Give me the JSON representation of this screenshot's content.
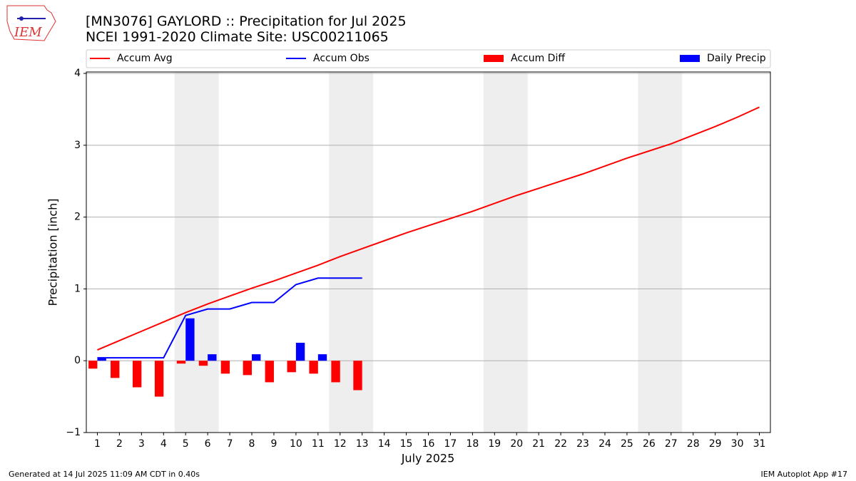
{
  "chart_data": {
    "type": "bar",
    "title": "[MN3076] GAYLORD :: Precipitation for Jul 2025",
    "subtitle": "NCEI 1991-2020 Climate Site: USC00211065",
    "x_label": "July 2025",
    "y_label": "Precipitation [inch]",
    "x": [
      1,
      2,
      3,
      4,
      5,
      6,
      7,
      8,
      9,
      10,
      11,
      12,
      13,
      14,
      15,
      16,
      17,
      18,
      19,
      20,
      21,
      22,
      23,
      24,
      25,
      26,
      27,
      28,
      29,
      30,
      31
    ],
    "xlim": [
      0.5,
      31.5
    ],
    "xticks": [
      1,
      2,
      3,
      4,
      5,
      6,
      7,
      8,
      9,
      10,
      11,
      12,
      13,
      14,
      15,
      16,
      17,
      18,
      19,
      20,
      21,
      22,
      23,
      24,
      25,
      26,
      27,
      28,
      29,
      30,
      31
    ],
    "ylim": [
      -1.0,
      4.02
    ],
    "yticks": [
      {
        "value": -1,
        "label": "−1"
      },
      0,
      1,
      2,
      3,
      4
    ],
    "grid": true,
    "weekend_spans": [
      [
        4.5,
        6.5
      ],
      [
        11.5,
        13.5
      ],
      [
        18.5,
        20.5
      ],
      [
        25.5,
        27.5
      ]
    ],
    "series": [
      {
        "name": "Accum Avg",
        "kind": "line",
        "color": "#ff0000",
        "values": [
          0.15,
          0.28,
          0.41,
          0.54,
          0.67,
          0.79,
          0.9,
          1.01,
          1.11,
          1.22,
          1.33,
          1.45,
          1.56,
          1.67,
          1.78,
          1.88,
          1.98,
          2.08,
          2.19,
          2.3,
          2.4,
          2.5,
          2.6,
          2.71,
          2.82,
          2.92,
          3.02,
          3.14,
          3.26,
          3.39,
          3.53
        ]
      },
      {
        "name": "Accum Obs",
        "kind": "line",
        "color": "#0000ff",
        "values": [
          0.04,
          0.04,
          0.04,
          0.04,
          0.63,
          0.72,
          0.72,
          0.81,
          0.81,
          1.06,
          1.15,
          1.15,
          1.15,
          null,
          null,
          null,
          null,
          null,
          null,
          null,
          null,
          null,
          null,
          null,
          null,
          null,
          null,
          null,
          null,
          null,
          null
        ]
      },
      {
        "name": "Accum Diff",
        "kind": "bar",
        "offset": -0.2,
        "color": "#ff0000",
        "values": [
          -0.11,
          -0.24,
          -0.37,
          -0.5,
          -0.04,
          -0.07,
          -0.18,
          -0.2,
          -0.3,
          -0.16,
          -0.18,
          -0.3,
          -0.41,
          null,
          null,
          null,
          null,
          null,
          null,
          null,
          null,
          null,
          null,
          null,
          null,
          null,
          null,
          null,
          null,
          null,
          null
        ]
      },
      {
        "name": "Daily Precip",
        "kind": "bar",
        "offset": 0.2,
        "color": "#0000ff",
        "values": [
          0.04,
          0,
          0,
          0,
          0.59,
          0.09,
          0,
          0.09,
          0,
          0.25,
          0.09,
          0,
          0,
          null,
          null,
          null,
          null,
          null,
          null,
          null,
          null,
          null,
          null,
          null,
          null,
          null,
          null,
          null,
          null,
          null,
          null
        ]
      }
    ],
    "logo_text": "IEM",
    "footer_left": "Generated at 14 Jul 2025 11:09 AM CDT in 0.40s",
    "footer_right": "IEM Autoplot App #17"
  }
}
